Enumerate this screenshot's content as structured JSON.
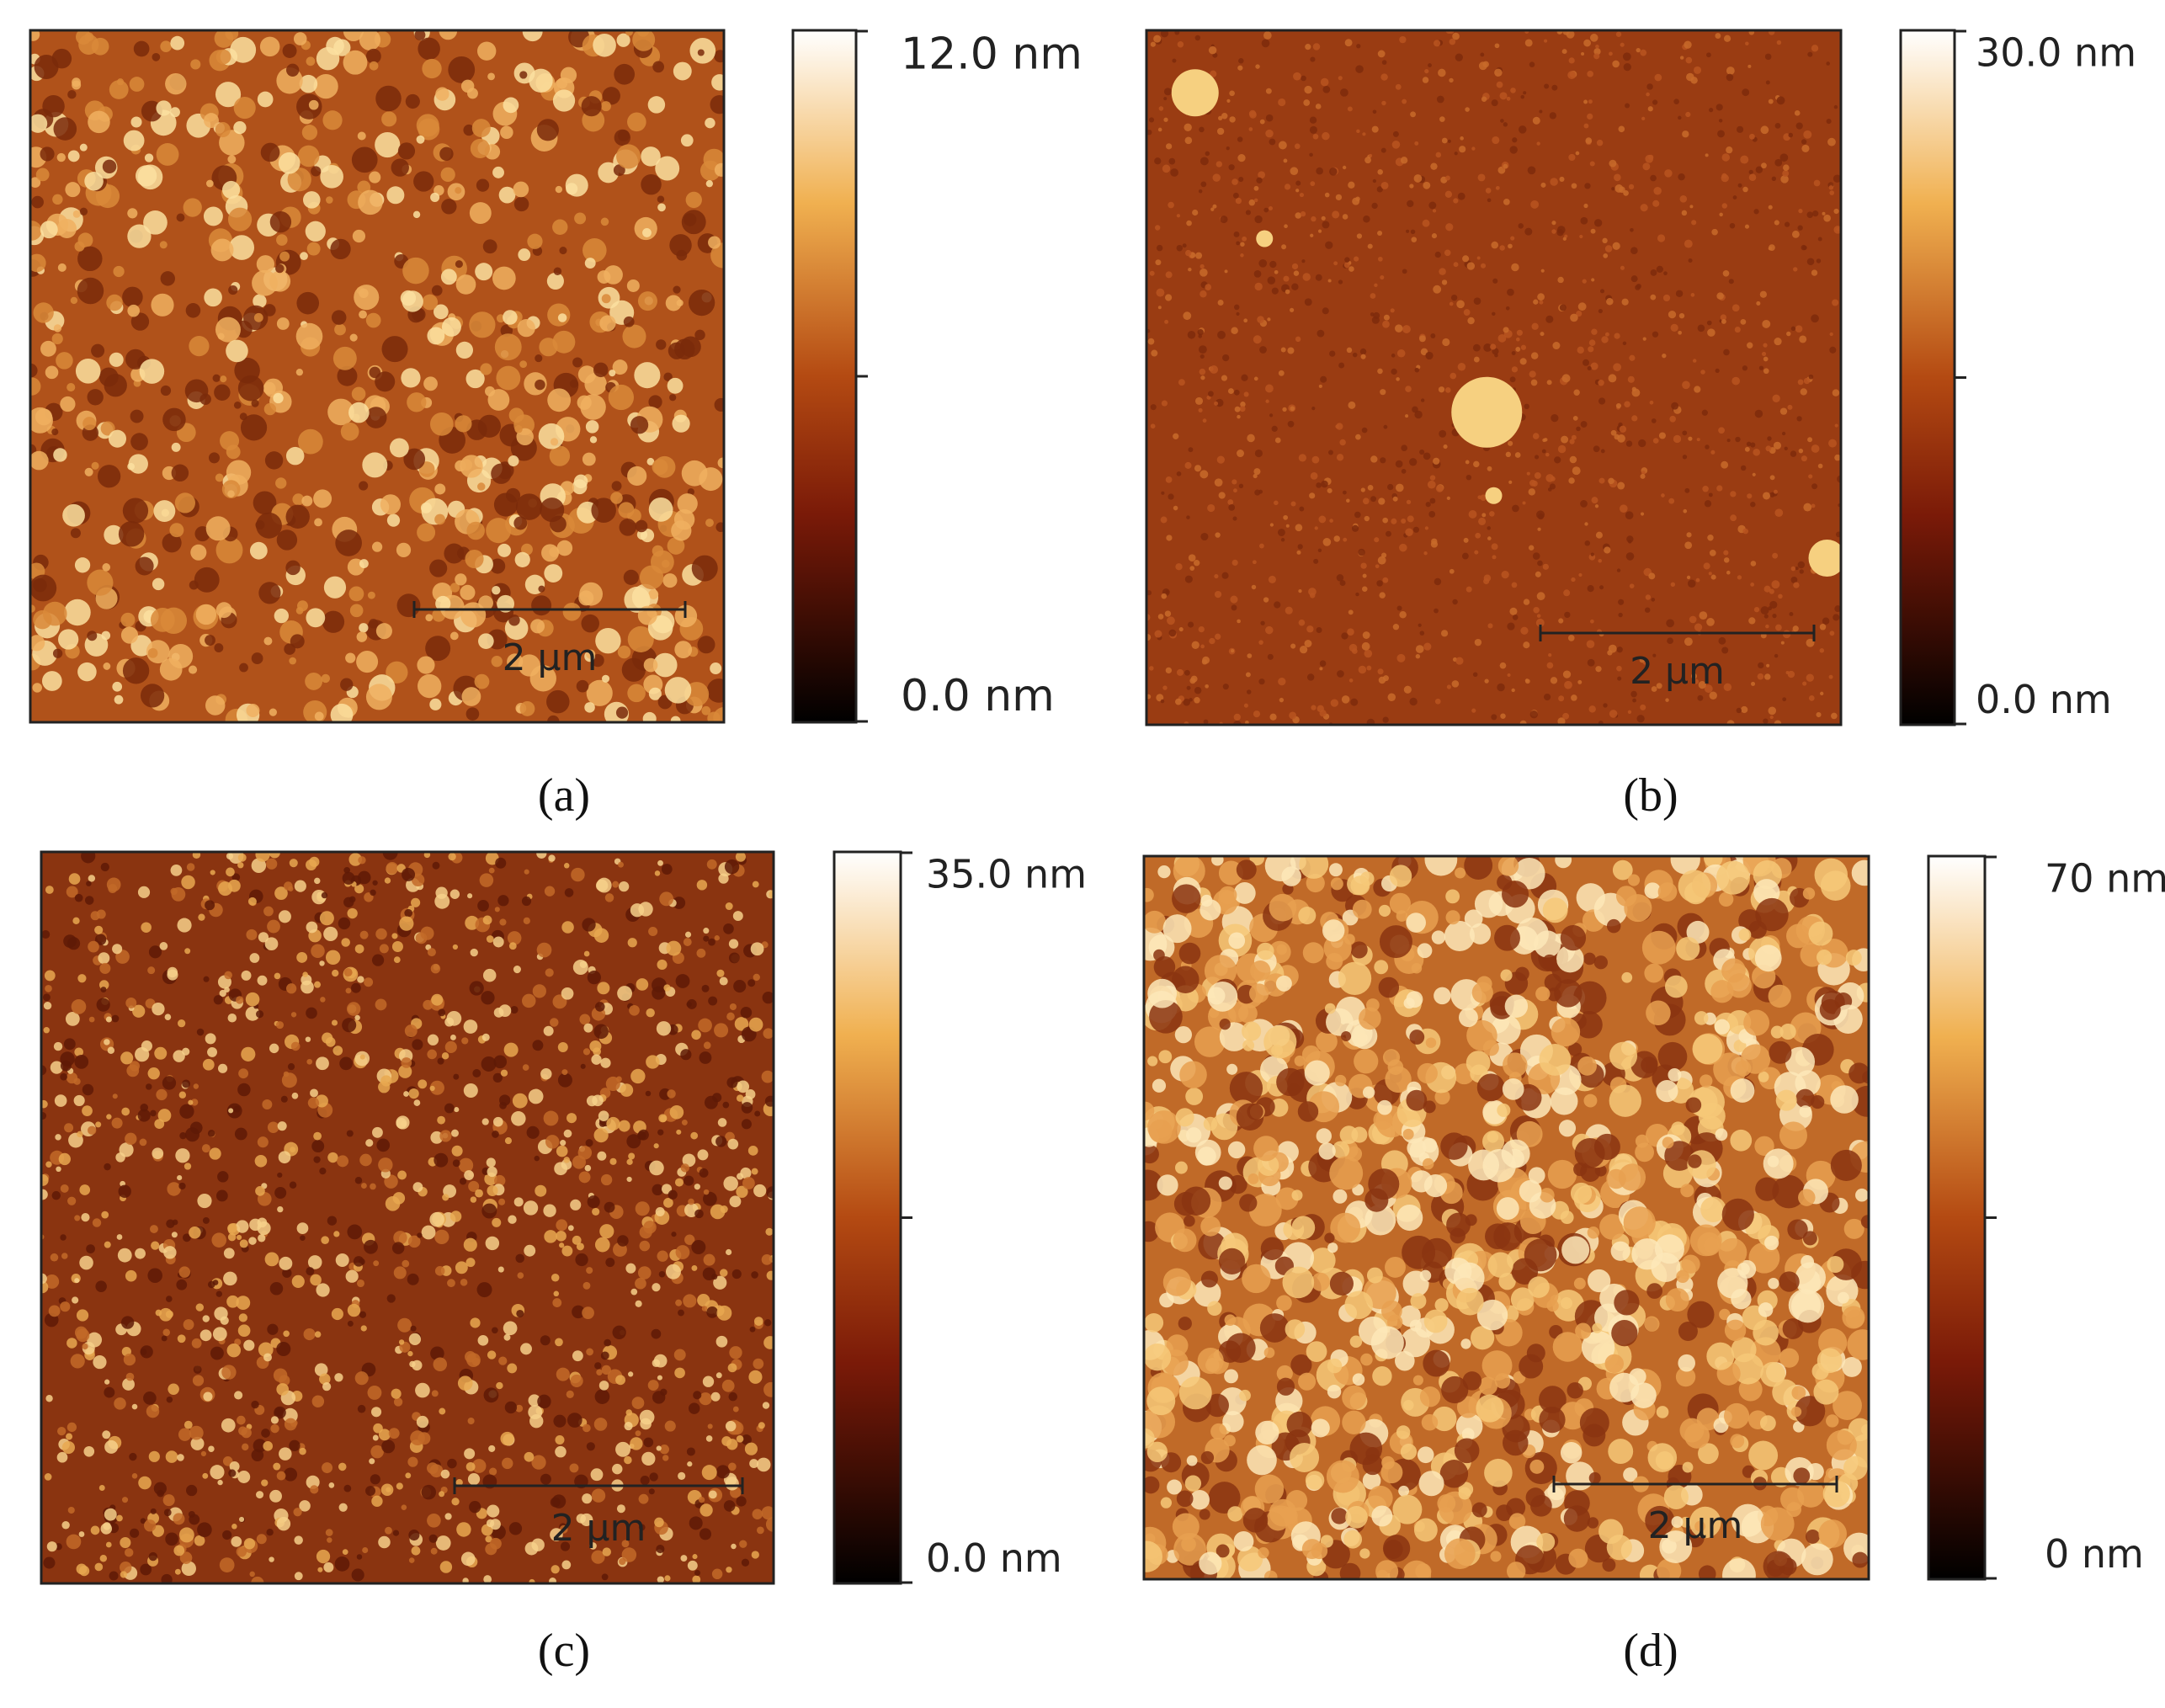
{
  "panels": [
    {
      "label": "(a)",
      "max_label": "12.0 nm",
      "min_label": "0.0 nm",
      "scale_bar": "2 µm"
    },
    {
      "label": "(b)",
      "max_label": "30.0 nm",
      "min_label": "0.0 nm",
      "scale_bar": "2 µm"
    },
    {
      "label": "(c)",
      "max_label": "35.0 nm",
      "min_label": "0.0 nm",
      "scale_bar": "2 µm"
    },
    {
      "label": "(d)",
      "max_label": "70 nm",
      "min_label": "0 nm",
      "scale_bar": "2 µm"
    }
  ]
}
